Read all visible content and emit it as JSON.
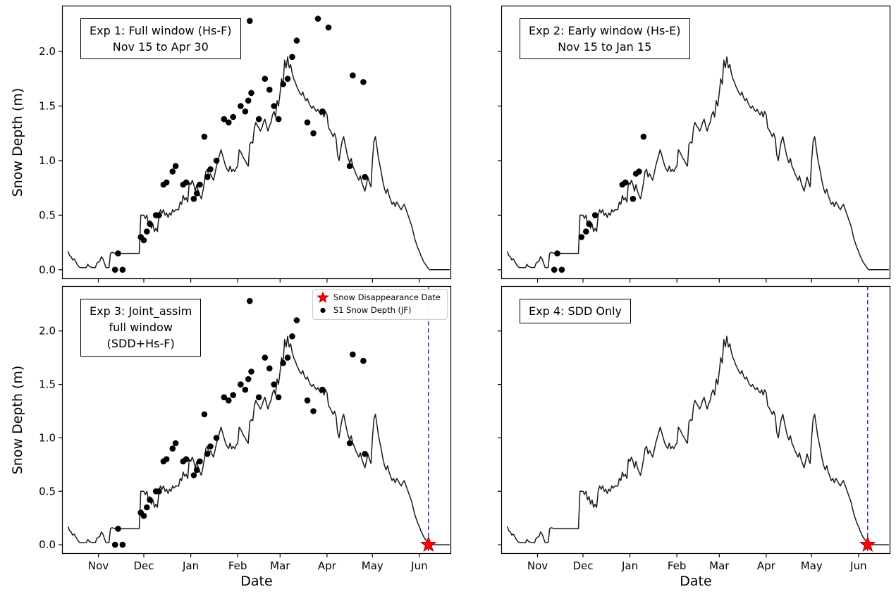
{
  "chart_data": {
    "type": "line",
    "shared": {
      "xlabel": "Date",
      "ylabel": "Snow Depth (m)",
      "xlim": [
        -4,
        253
      ],
      "ylim": [
        -0.085,
        2.42
      ],
      "x_ticks": [
        {
          "label": "Nov",
          "day": 20
        },
        {
          "label": "Dec",
          "day": 50
        },
        {
          "label": "Jan",
          "day": 81
        },
        {
          "label": "Feb",
          "day": 112
        },
        {
          "label": "Mar",
          "day": 140
        },
        {
          "label": "Apr",
          "day": 171
        },
        {
          "label": "May",
          "day": 201
        },
        {
          "label": "Jun",
          "day": 232
        }
      ],
      "y_ticks": [
        {
          "label": "0.0",
          "value": 0.0
        },
        {
          "label": "0.5",
          "value": 0.5
        },
        {
          "label": "1.0",
          "value": 1.0
        },
        {
          "label": "1.5",
          "value": 1.5
        },
        {
          "label": "2.0",
          "value": 2.0
        }
      ],
      "sdd_day": 238,
      "colors": {
        "line": "#1a1a1a",
        "scatter": "#000000",
        "sdd_line": "#2222dd",
        "star": "#ff0000",
        "star_edge": "#b00000"
      },
      "model_line": [
        [
          0,
          0.17
        ],
        [
          1,
          0.13
        ],
        [
          2,
          0.12
        ],
        [
          3,
          0.09
        ],
        [
          4,
          0.1
        ],
        [
          6,
          0.05
        ],
        [
          7,
          0.03
        ],
        [
          8,
          0.02
        ],
        [
          12,
          0.02
        ],
        [
          13,
          0.05
        ],
        [
          14,
          0.03
        ],
        [
          16,
          0.02
        ],
        [
          18,
          0.02
        ],
        [
          19,
          0.06
        ],
        [
          21,
          0.08
        ],
        [
          22,
          0.12
        ],
        [
          23,
          0.1
        ],
        [
          24,
          0.06
        ],
        [
          25,
          0.02
        ],
        [
          27,
          0.02
        ],
        [
          28,
          0.15
        ],
        [
          29,
          0.16
        ],
        [
          31,
          0.15
        ],
        [
          47,
          0.15
        ],
        [
          48,
          0.5
        ],
        [
          50,
          0.5
        ],
        [
          51,
          0.47
        ],
        [
          52,
          0.5
        ],
        [
          53,
          0.42
        ],
        [
          54,
          0.45
        ],
        [
          55,
          0.38
        ],
        [
          56,
          0.42
        ],
        [
          57,
          0.35
        ],
        [
          58,
          0.38
        ],
        [
          59,
          0.35
        ],
        [
          60,
          0.5
        ],
        [
          61,
          0.55
        ],
        [
          62,
          0.52
        ],
        [
          63,
          0.55
        ],
        [
          64,
          0.5
        ],
        [
          65,
          0.52
        ],
        [
          66,
          0.48
        ],
        [
          67,
          0.52
        ],
        [
          68,
          0.5
        ],
        [
          69,
          0.55
        ],
        [
          70,
          0.53
        ],
        [
          71,
          0.55
        ],
        [
          73,
          0.55
        ],
        [
          74,
          0.62
        ],
        [
          75,
          0.6
        ],
        [
          76,
          0.68
        ],
        [
          77,
          0.64
        ],
        [
          78,
          0.66
        ],
        [
          79,
          0.62
        ],
        [
          80,
          0.8
        ],
        [
          81,
          0.78
        ],
        [
          82,
          0.82
        ],
        [
          83,
          0.78
        ],
        [
          84,
          0.72
        ],
        [
          85,
          0.78
        ],
        [
          86,
          0.72
        ],
        [
          87,
          0.68
        ],
        [
          88,
          0.65
        ],
        [
          89,
          0.72
        ],
        [
          90,
          0.8
        ],
        [
          91,
          0.9
        ],
        [
          92,
          0.92
        ],
        [
          93,
          0.85
        ],
        [
          94,
          0.88
        ],
        [
          95,
          0.85
        ],
        [
          96,
          0.82
        ],
        [
          97,
          0.88
        ],
        [
          98,
          0.95
        ],
        [
          99,
          1.0
        ],
        [
          100,
          1.05
        ],
        [
          101,
          1.1
        ],
        [
          102,
          1.05
        ],
        [
          103,
          1.0
        ],
        [
          104,
          0.95
        ],
        [
          105,
          0.92
        ],
        [
          106,
          0.9
        ],
        [
          107,
          0.95
        ],
        [
          108,
          0.9
        ],
        [
          109,
          0.92
        ],
        [
          110,
          0.9
        ],
        [
          111,
          0.93
        ],
        [
          112,
          0.95
        ],
        [
          113,
          1.1
        ],
        [
          114,
          1.08
        ],
        [
          115,
          1.05
        ],
        [
          116,
          1.02
        ],
        [
          117,
          1.0
        ],
        [
          118,
          0.97
        ],
        [
          119,
          0.95
        ],
        [
          120,
          1.15
        ],
        [
          121,
          1.17
        ],
        [
          122,
          1.16
        ],
        [
          123,
          1.3
        ],
        [
          124,
          1.35
        ],
        [
          125,
          1.32
        ],
        [
          126,
          1.3
        ],
        [
          127,
          1.27
        ],
        [
          128,
          1.3
        ],
        [
          129,
          1.35
        ],
        [
          130,
          1.38
        ],
        [
          131,
          1.32
        ],
        [
          132,
          1.27
        ],
        [
          133,
          1.32
        ],
        [
          134,
          1.35
        ],
        [
          135,
          1.42
        ],
        [
          136,
          1.45
        ],
        [
          137,
          1.4
        ],
        [
          138,
          1.55
        ],
        [
          139,
          1.5
        ],
        [
          140,
          1.62
        ],
        [
          141,
          1.75
        ],
        [
          142,
          1.7
        ],
        [
          143,
          1.92
        ],
        [
          144,
          1.85
        ],
        [
          145,
          1.95
        ],
        [
          146,
          1.85
        ],
        [
          147,
          1.88
        ],
        [
          148,
          1.8
        ],
        [
          149,
          1.75
        ],
        [
          150,
          1.72
        ],
        [
          151,
          1.68
        ],
        [
          152,
          1.65
        ],
        [
          153,
          1.62
        ],
        [
          154,
          1.6
        ],
        [
          155,
          1.63
        ],
        [
          156,
          1.58
        ],
        [
          157,
          1.55
        ],
        [
          158,
          1.57
        ],
        [
          159,
          1.53
        ],
        [
          160,
          1.5
        ],
        [
          161,
          1.48
        ],
        [
          162,
          1.5
        ],
        [
          163,
          1.47
        ],
        [
          164,
          1.45
        ],
        [
          165,
          1.47
        ],
        [
          166,
          1.44
        ],
        [
          167,
          1.42
        ],
        [
          168,
          1.45
        ],
        [
          169,
          1.4
        ],
        [
          170,
          1.45
        ],
        [
          171,
          1.42
        ],
        [
          172,
          1.3
        ],
        [
          173,
          1.28
        ],
        [
          174,
          1.25
        ],
        [
          175,
          1.22
        ],
        [
          176,
          1.25
        ],
        [
          177,
          1.2
        ],
        [
          178,
          1.05
        ],
        [
          179,
          1.0
        ],
        [
          180,
          1.1
        ],
        [
          181,
          1.18
        ],
        [
          182,
          1.22
        ],
        [
          183,
          1.15
        ],
        [
          184,
          1.08
        ],
        [
          185,
          1.02
        ],
        [
          186,
          0.98
        ],
        [
          187,
          1.02
        ],
        [
          188,
          0.95
        ],
        [
          189,
          0.92
        ],
        [
          190,
          0.88
        ],
        [
          191,
          0.85
        ],
        [
          192,
          0.82
        ],
        [
          193,
          0.86
        ],
        [
          194,
          0.8
        ],
        [
          195,
          0.76
        ],
        [
          196,
          0.72
        ],
        [
          197,
          0.78
        ],
        [
          198,
          0.85
        ],
        [
          199,
          0.8
        ],
        [
          200,
          0.76
        ],
        [
          201,
          1.0
        ],
        [
          202,
          1.18
        ],
        [
          203,
          1.22
        ],
        [
          204,
          1.12
        ],
        [
          205,
          1.02
        ],
        [
          206,
          0.95
        ],
        [
          207,
          0.88
        ],
        [
          208,
          0.8
        ],
        [
          209,
          0.74
        ],
        [
          210,
          0.7
        ],
        [
          211,
          0.74
        ],
        [
          212,
          0.68
        ],
        [
          213,
          0.64
        ],
        [
          214,
          0.6
        ],
        [
          215,
          0.62
        ],
        [
          216,
          0.58
        ],
        [
          217,
          0.62
        ],
        [
          218,
          0.6
        ],
        [
          219,
          0.57
        ],
        [
          220,
          0.55
        ],
        [
          221,
          0.58
        ],
        [
          222,
          0.6
        ],
        [
          223,
          0.56
        ],
        [
          224,
          0.52
        ],
        [
          225,
          0.48
        ],
        [
          226,
          0.44
        ],
        [
          227,
          0.4
        ],
        [
          228,
          0.34
        ],
        [
          229,
          0.28
        ],
        [
          230,
          0.24
        ],
        [
          231,
          0.2
        ],
        [
          232,
          0.17
        ],
        [
          233,
          0.13
        ],
        [
          234,
          0.1
        ],
        [
          235,
          0.07
        ],
        [
          236,
          0.05
        ],
        [
          237,
          0.03
        ],
        [
          238,
          0.01
        ],
        [
          239,
          0.0
        ],
        [
          252,
          0.0
        ]
      ],
      "s1_full": [
        [
          31,
          0.0
        ],
        [
          36,
          0.0
        ],
        [
          33,
          0.15
        ],
        [
          48,
          0.3
        ],
        [
          50,
          0.27
        ],
        [
          52,
          0.35
        ],
        [
          54,
          0.42
        ],
        [
          58,
          0.5
        ],
        [
          60,
          0.5
        ],
        [
          63,
          0.78
        ],
        [
          65,
          0.8
        ],
        [
          69,
          0.9
        ],
        [
          71,
          0.95
        ],
        [
          76,
          0.78
        ],
        [
          78,
          0.8
        ],
        [
          83,
          0.65
        ],
        [
          85,
          0.7
        ],
        [
          87,
          0.78
        ],
        [
          90,
          1.22
        ],
        [
          92,
          0.85
        ],
        [
          94,
          0.92
        ],
        [
          98,
          1.0
        ],
        [
          103,
          1.38
        ],
        [
          106,
          1.35
        ],
        [
          109,
          1.4
        ],
        [
          114,
          1.5
        ],
        [
          117,
          1.45
        ],
        [
          119,
          1.55
        ],
        [
          121,
          1.62
        ],
        [
          120,
          2.28
        ],
        [
          126,
          1.38
        ],
        [
          130,
          1.75
        ],
        [
          133,
          1.65
        ],
        [
          136,
          1.5
        ],
        [
          139,
          1.38
        ],
        [
          142,
          1.7
        ],
        [
          145,
          1.75
        ],
        [
          148,
          1.95
        ],
        [
          151,
          2.1
        ],
        [
          165,
          2.3
        ],
        [
          172,
          2.22
        ],
        [
          158,
          1.35
        ],
        [
          162,
          1.25
        ],
        [
          168,
          1.45
        ],
        [
          186,
          0.95
        ],
        [
          188,
          1.78
        ],
        [
          195,
          1.72
        ],
        [
          196,
          0.85
        ]
      ],
      "s1_early": [
        [
          31,
          0.0
        ],
        [
          36,
          0.0
        ],
        [
          33,
          0.15
        ],
        [
          49,
          0.3
        ],
        [
          52,
          0.35
        ],
        [
          54,
          0.42
        ],
        [
          58,
          0.5
        ],
        [
          76,
          0.78
        ],
        [
          78,
          0.8
        ],
        [
          83,
          0.65
        ],
        [
          85,
          0.88
        ],
        [
          87,
          0.9
        ],
        [
          90,
          1.22
        ]
      ]
    },
    "panels": [
      {
        "name": "exp1",
        "box_lines": [
          "Exp 1: Full window (Hs-F)",
          "Nov 15 to Apr 30"
        ],
        "scatter": "s1_full",
        "show_sdd": false,
        "legend": false,
        "show_x_tick_labels": false,
        "show_y_tick_labels": true
      },
      {
        "name": "exp2",
        "box_lines": [
          "Exp 2: Early window (Hs-E)",
          "Nov 15 to Jan 15"
        ],
        "scatter": "s1_early",
        "show_sdd": false,
        "legend": false,
        "show_x_tick_labels": false,
        "show_y_tick_labels": false
      },
      {
        "name": "exp3",
        "box_lines": [
          "Exp 3: Joint_assim",
          "full window",
          "(SDD+Hs-F)"
        ],
        "scatter": "s1_full",
        "show_sdd": true,
        "legend": true,
        "show_x_tick_labels": true,
        "show_y_tick_labels": true
      },
      {
        "name": "exp4",
        "box_lines": [
          "Exp 4: SDD Only"
        ],
        "scatter": null,
        "show_sdd": true,
        "legend": false,
        "show_x_tick_labels": true,
        "show_y_tick_labels": false
      }
    ],
    "legend": [
      {
        "marker": "star",
        "label": "Snow Disappearance Date"
      },
      {
        "marker": "dot",
        "label": "S1 Snow Depth (JF)"
      }
    ]
  }
}
